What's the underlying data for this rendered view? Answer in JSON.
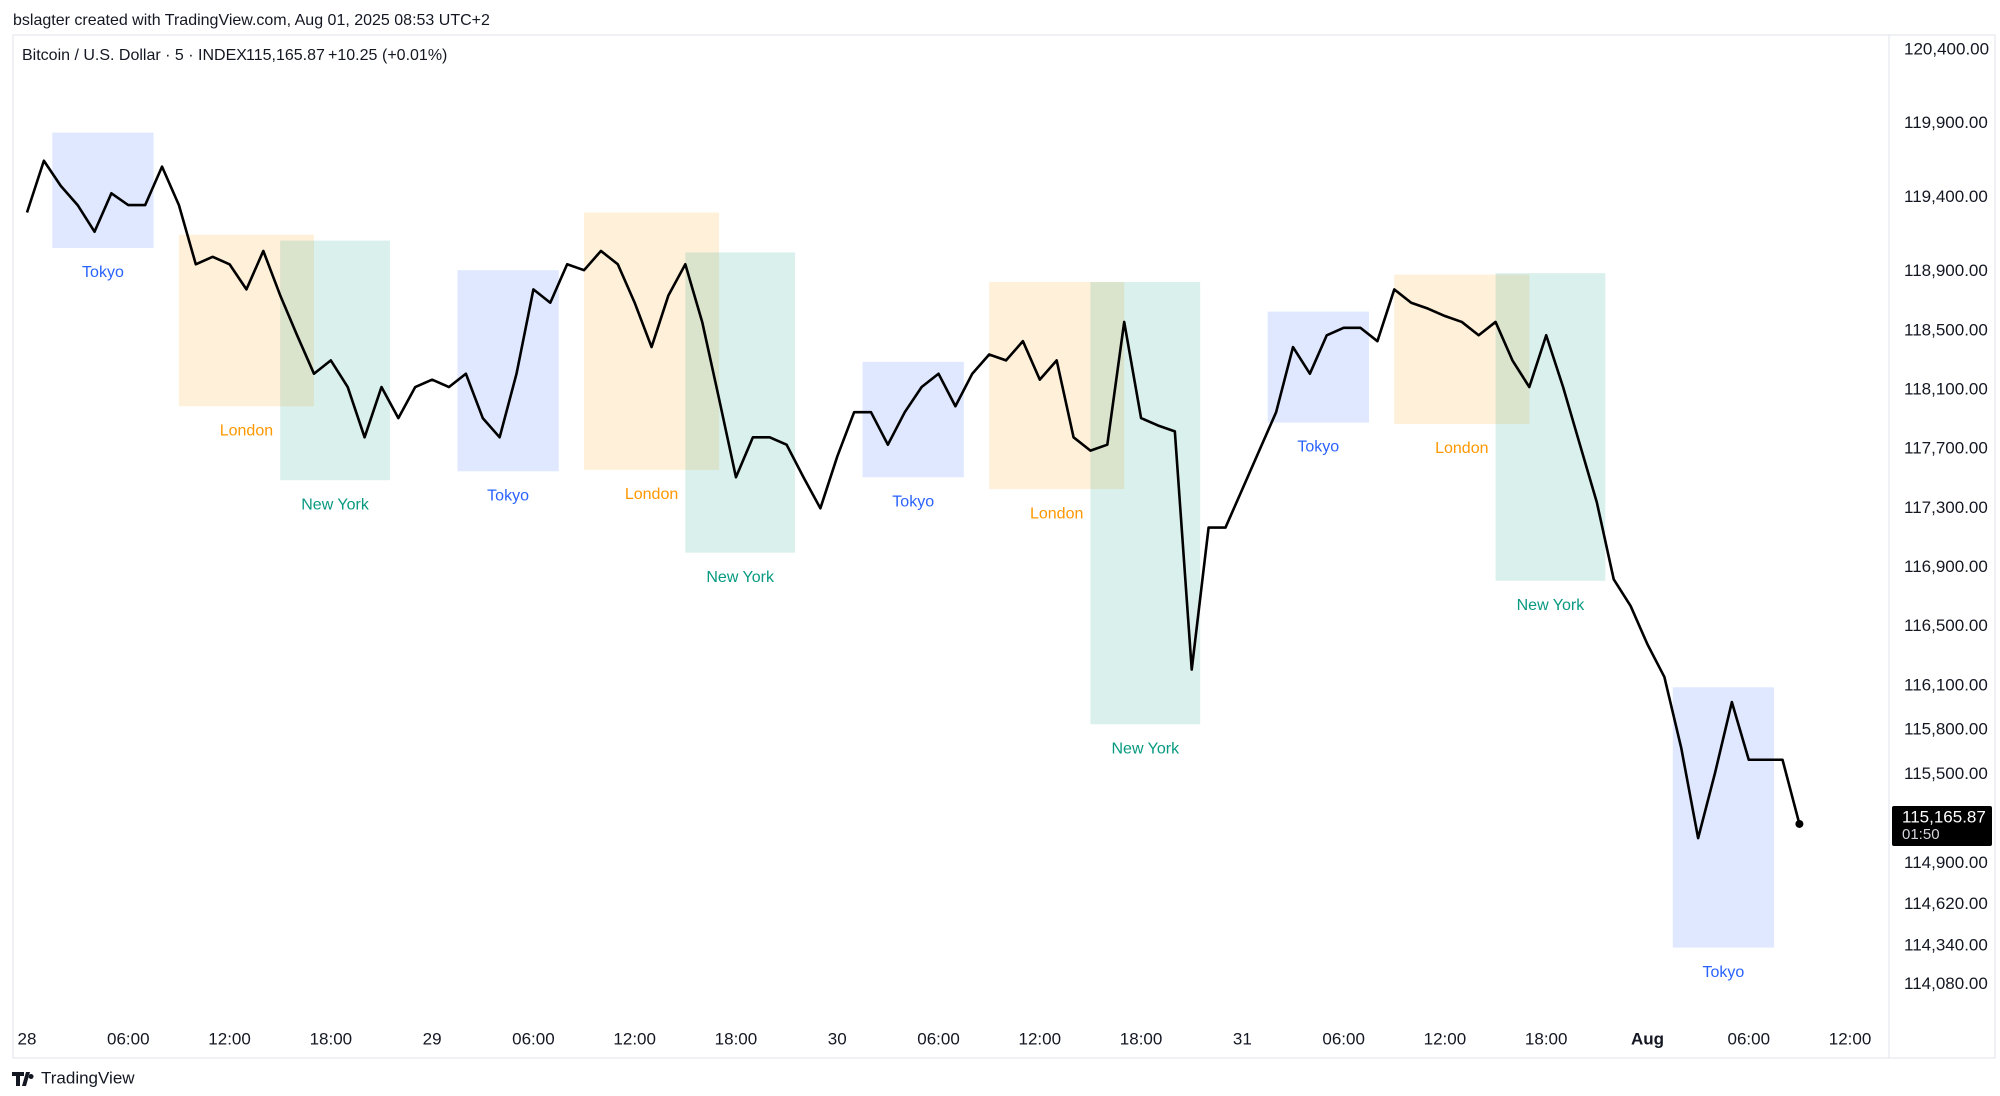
{
  "credit": "bslagter created with TradingView.com, Aug 01, 2025 08:53 UTC+2",
  "brand": "TradingView",
  "chart_data": {
    "type": "line",
    "title": "Bitcoin / U.S. Dollar · 5 · INDEX",
    "last_label": "115,165.87",
    "change": "+10.25",
    "change_pct": "(+0.01%)",
    "countdown": "01:50",
    "color": "#000000",
    "grid": false,
    "ylim": [
      113800,
      120500
    ],
    "yticks": [
      {
        "value": 120400,
        "label": "120,400.00"
      },
      {
        "value": 119900,
        "label": "119,900.00"
      },
      {
        "value": 119400,
        "label": "119,400.00"
      },
      {
        "value": 118900,
        "label": "118,900.00"
      },
      {
        "value": 118500,
        "label": "118,500.00"
      },
      {
        "value": 118100,
        "label": "118,100.00"
      },
      {
        "value": 117700,
        "label": "117,700.00"
      },
      {
        "value": 117300,
        "label": "117,300.00"
      },
      {
        "value": 116900,
        "label": "116,900.00"
      },
      {
        "value": 116500,
        "label": "116,500.00"
      },
      {
        "value": 116100,
        "label": "116,100.00"
      },
      {
        "value": 115800,
        "label": "115,800.00"
      },
      {
        "value": 115500,
        "label": "115,500.00"
      },
      {
        "value": 114900,
        "label": "114,900.00"
      },
      {
        "value": 114620,
        "label": "114,620.00"
      },
      {
        "value": 114340,
        "label": "114,340.00"
      },
      {
        "value": 114080,
        "label": "114,080.00"
      }
    ],
    "categories": [
      "28",
      null,
      null,
      null,
      null,
      null,
      "06:00",
      null,
      null,
      null,
      null,
      null,
      "12:00",
      null,
      null,
      null,
      null,
      null,
      "18:00",
      null,
      null,
      null,
      null,
      null,
      "29",
      null,
      null,
      null,
      null,
      null,
      "06:00",
      null,
      null,
      null,
      null,
      null,
      "12:00",
      null,
      null,
      null,
      null,
      null,
      "18:00",
      null,
      null,
      null,
      null,
      null,
      "30",
      null,
      null,
      null,
      null,
      null,
      "06:00",
      null,
      null,
      null,
      null,
      null,
      "12:00",
      null,
      null,
      null,
      null,
      null,
      "18:00",
      null,
      null,
      null,
      null,
      null,
      "31",
      null,
      null,
      null,
      null,
      null,
      "06:00",
      null,
      null,
      null,
      null,
      null,
      "12:00",
      null,
      null,
      null,
      null,
      null,
      "18:00",
      null,
      null,
      null,
      null,
      null,
      "Aug",
      null,
      null,
      null,
      null,
      null,
      "06:00",
      null,
      null,
      null,
      null,
      null,
      "12:00",
      null,
      null
    ],
    "values": [
      119300,
      119650,
      119480,
      119350,
      119170,
      119430,
      119350,
      119350,
      119610,
      119350,
      118950,
      119000,
      118950,
      118780,
      119040,
      118740,
      118470,
      118210,
      118300,
      118120,
      117780,
      118120,
      117910,
      118120,
      118170,
      118120,
      118210,
      117910,
      117780,
      118210,
      118780,
      118690,
      118950,
      118910,
      119040,
      118950,
      118690,
      118390,
      118740,
      118950,
      118560,
      118040,
      117510,
      117780,
      117780,
      117730,
      117510,
      117300,
      117650,
      117950,
      117950,
      117730,
      117950,
      118120,
      118210,
      117990,
      118210,
      118340,
      118300,
      118430,
      118170,
      118300,
      117780,
      117690,
      117730,
      118560,
      117910,
      117860,
      117820,
      116210,
      117170,
      117170,
      117430,
      117690,
      117950,
      118390,
      118210,
      118470,
      118520,
      118520,
      118430,
      118780,
      118690,
      118650,
      118600,
      118560,
      118470,
      118560,
      118300,
      118120,
      118470,
      118120,
      117730,
      117340,
      116820,
      116640,
      116380,
      116160,
      115680,
      115070,
      115510,
      115990,
      115600,
      115600,
      115600,
      115165.87,
      null,
      null,
      null,
      null,
      null
    ],
    "sessions": [
      {
        "label": "Tokyo",
        "color": "#2962ff",
        "start": 1.5,
        "end": 7.5,
        "high": 119840,
        "low": 119060
      },
      {
        "label": "London",
        "color": "#ff9800",
        "start": 9,
        "end": 17,
        "high": 119150,
        "low": 117990
      },
      {
        "label": "New York",
        "color": "#089981",
        "start": 15,
        "end": 21.5,
        "high": 119110,
        "low": 117490
      },
      {
        "label": "Tokyo",
        "color": "#2962ff",
        "start": 25.5,
        "end": 31.5,
        "high": 118910,
        "low": 117550
      },
      {
        "label": "London",
        "color": "#ff9800",
        "start": 33,
        "end": 41,
        "high": 119300,
        "low": 117560
      },
      {
        "label": "New York",
        "color": "#089981",
        "start": 39,
        "end": 45.5,
        "high": 119030,
        "low": 117000
      },
      {
        "label": "Tokyo",
        "color": "#2962ff",
        "start": 49.5,
        "end": 55.5,
        "high": 118290,
        "low": 117510
      },
      {
        "label": "London",
        "color": "#ff9800",
        "start": 57,
        "end": 65,
        "high": 118830,
        "low": 117430
      },
      {
        "label": "New York",
        "color": "#089981",
        "start": 63,
        "end": 69.5,
        "high": 118830,
        "low": 115840
      },
      {
        "label": "Tokyo",
        "color": "#2962ff",
        "start": 73.5,
        "end": 79.5,
        "high": 118630,
        "low": 117880
      },
      {
        "label": "London",
        "color": "#ff9800",
        "start": 81,
        "end": 89,
        "high": 118880,
        "low": 117870
      },
      {
        "label": "New York",
        "color": "#089981",
        "start": 87,
        "end": 93.5,
        "high": 118890,
        "low": 116810
      },
      {
        "label": "Tokyo",
        "color": "#2962ff",
        "start": 97.5,
        "end": 103.5,
        "high": 116090,
        "low": 114330
      }
    ]
  }
}
